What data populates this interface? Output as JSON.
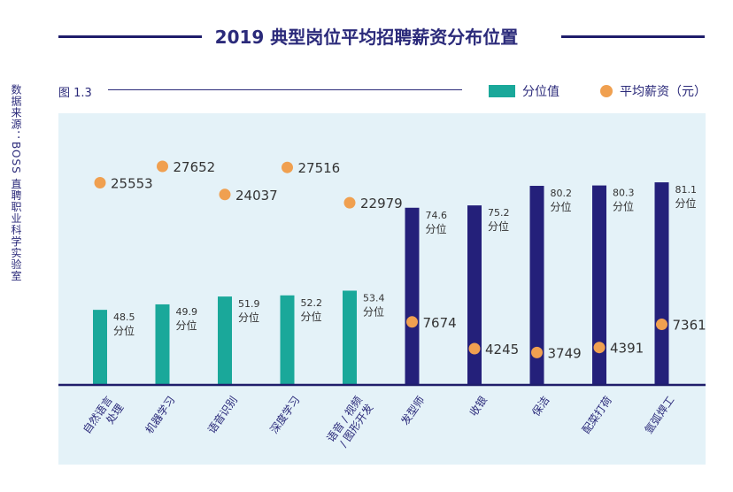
{
  "title": "2019 典型岗位平均招聘薪资分布位置",
  "source": "数据来源：BOSS 直聘职业科学实验室",
  "figure_label": "图 1.3",
  "chart_data": {
    "type": "bar",
    "title": "2019 典型岗位平均招聘薪资分布位置",
    "categories": [
      "自然语言处理",
      "机器学习",
      "语音识别",
      "深度学习",
      "语音 / 视频 / 图形开发",
      "发型师",
      "收银",
      "保洁",
      "配菜打荷",
      "氩弧焊工"
    ],
    "category_lines": [
      [
        "自然语言",
        "处理"
      ],
      [
        "机器学习"
      ],
      [
        "语音识别"
      ],
      [
        "深度学习"
      ],
      [
        "语音 / 视频",
        "/ 图形开发"
      ],
      [
        "发型师"
      ],
      [
        "收银"
      ],
      [
        "保洁"
      ],
      [
        "配菜打荷"
      ],
      [
        "氩弧焊工"
      ]
    ],
    "series": [
      {
        "name": "分位值",
        "kind": "bar",
        "values": [
          48.5,
          49.9,
          51.9,
          52.2,
          53.4,
          74.6,
          75.2,
          80.2,
          80.3,
          81.1
        ],
        "unit_label": "分位"
      },
      {
        "name": "平均薪资（元）",
        "kind": "scatter",
        "values": [
          25553,
          27652,
          24037,
          27516,
          22979,
          7674,
          4245,
          3749,
          4391,
          7361
        ]
      }
    ],
    "colors": {
      "ai_bar": "#1aa89a",
      "service_bar": "#24207a",
      "dot": "#f0a050",
      "panel": "#e4f2f8"
    },
    "legend": "top-right",
    "grid": false
  }
}
